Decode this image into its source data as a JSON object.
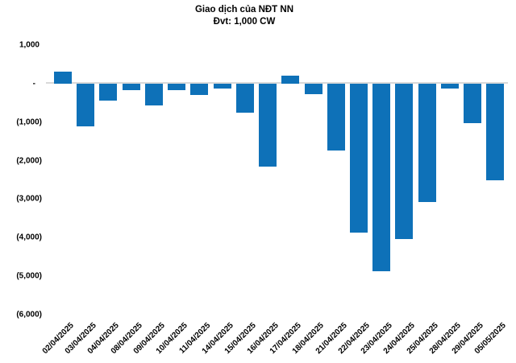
{
  "chart_data": {
    "type": "bar",
    "title": "Giao dịch của NĐT NN",
    "subtitle": "Đvt: 1,000 CW",
    "categories": [
      "02/04/2025",
      "03/04/2025",
      "04/04/2025",
      "08/04/2025",
      "09/04/2025",
      "10/04/2025",
      "11/04/2025",
      "14/04/2025",
      "15/04/2025",
      "16/04/2025",
      "17/04/2025",
      "18/04/2025",
      "21/04/2025",
      "22/04/2025",
      "23/04/2025",
      "24/04/2025",
      "25/04/2025",
      "28/04/2025",
      "29/04/2025",
      "05/05/2025"
    ],
    "values": [
      320,
      -1100,
      -440,
      -170,
      -570,
      -160,
      -290,
      -120,
      -760,
      -2160,
      200,
      -270,
      -1730,
      -3860,
      -4880,
      -4040,
      -3080,
      -130,
      -1020,
      -2510
    ],
    "xlabel": "",
    "ylabel": "",
    "ylim": [
      -6000,
      1000
    ],
    "ytick_values": [
      1000,
      0,
      -1000,
      -2000,
      -3000,
      -4000,
      -5000,
      -6000
    ],
    "ytick_labels": [
      "1,000",
      "-",
      "(1,000)",
      "(2,000)",
      "(3,000)",
      "(4,000)",
      "(5,000)",
      "(6,000)"
    ],
    "grid": false,
    "legend_position": "none",
    "bar_color": "#0E71B8",
    "zero_line_color": "#D9D9D9",
    "text_color": "#000000"
  }
}
